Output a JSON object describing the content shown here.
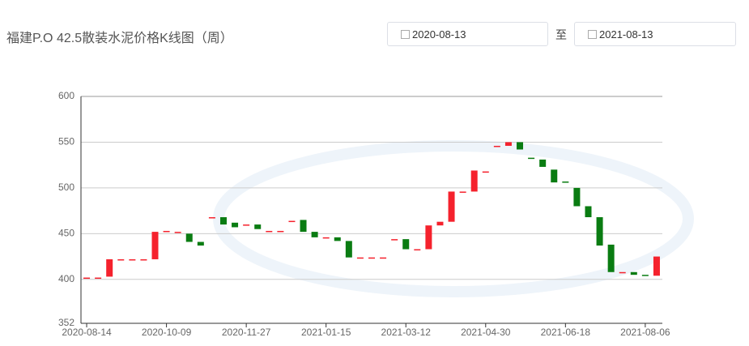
{
  "header": {
    "title": "福建P.O 42.5散装水泥价格K线图（周）",
    "start_date": "2020-08-13",
    "separator": "至",
    "end_date": "2021-08-13"
  },
  "chart_data": {
    "type": "candlestick",
    "categories": [
      "2020-08-14",
      null,
      null,
      null,
      null,
      null,
      null,
      "2020-10-09",
      null,
      null,
      null,
      null,
      null,
      null,
      "2020-11-27",
      null,
      null,
      null,
      null,
      null,
      null,
      "2021-01-15",
      null,
      null,
      null,
      null,
      null,
      null,
      "2021-03-12",
      null,
      null,
      null,
      null,
      null,
      null,
      "2021-04-30",
      null,
      null,
      null,
      null,
      null,
      null,
      "2021-06-18",
      null,
      null,
      null,
      null,
      null,
      null,
      "2021-08-06",
      null
    ],
    "open": [
      402,
      402,
      403,
      422,
      422,
      422,
      422,
      453,
      452,
      450,
      441,
      468,
      468,
      462,
      460,
      460,
      453,
      453,
      464,
      465,
      452,
      446,
      446,
      442,
      424,
      424,
      424,
      444,
      444,
      433,
      433,
      459,
      463,
      496,
      496,
      518,
      546,
      546,
      550,
      533,
      531,
      520,
      507,
      500,
      480,
      468,
      438,
      408,
      408,
      405,
      404
    ],
    "close": [
      402,
      402,
      422,
      422,
      422,
      422,
      452,
      453,
      452,
      441,
      437,
      468,
      460,
      457,
      460,
      455,
      453,
      453,
      464,
      452,
      446,
      446,
      442,
      424,
      424,
      424,
      424,
      444,
      433,
      433,
      459,
      463,
      496,
      496,
      519,
      518,
      546,
      550,
      542,
      532,
      523,
      506,
      506,
      480,
      468,
      437,
      408,
      408,
      405,
      404,
      425
    ],
    "up_color": "#f5222d",
    "down_color": "#0a7c12",
    "ylim": [
      352,
      600
    ],
    "yticks": [
      352,
      400,
      450,
      500,
      550,
      600
    ],
    "grid": true
  }
}
